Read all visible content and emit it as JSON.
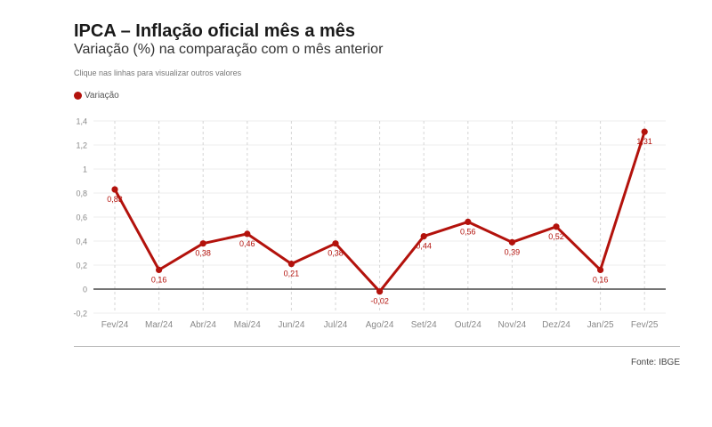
{
  "header": {
    "title": "IPCA – Inflação oficial mês a mês",
    "subtitle": "Variação (%) na comparação com o mês anterior",
    "hint": "Clique nas linhas para visualizar outros valores"
  },
  "legend": {
    "label": "Variação",
    "icon": "circle-marker-icon"
  },
  "footer": {
    "source": "Fonte: IBGE"
  },
  "colors": {
    "series": "#b3120c",
    "zero_line": "#222222",
    "grid": "#d6d6d6",
    "tick_text": "#888888"
  },
  "chart_data": {
    "type": "line",
    "title": "IPCA – Inflação oficial mês a mês",
    "subtitle": "Variação (%) na comparação com o mês anterior",
    "xlabel": "",
    "ylabel": "",
    "categories": [
      "Fev/24",
      "Mar/24",
      "Abr/24",
      "Mai/24",
      "Jun/24",
      "Jul/24",
      "Ago/24",
      "Set/24",
      "Out/24",
      "Nov/24",
      "Dez/24",
      "Jan/25",
      "Fev/25"
    ],
    "series": [
      {
        "name": "Variação",
        "values": [
          0.83,
          0.16,
          0.38,
          0.46,
          0.21,
          0.38,
          -0.02,
          0.44,
          0.56,
          0.39,
          0.52,
          0.16,
          1.31
        ]
      }
    ],
    "data_labels": [
      "0,83",
      "0,16",
      "0,38",
      "0,46",
      "0,21",
      "0,38",
      "-0,02",
      "0,44",
      "0,56",
      "0,39",
      "0,52",
      "0,16",
      "1,31"
    ],
    "yticks": [
      -0.2,
      0,
      0.2,
      0.4,
      0.6,
      0.8,
      1,
      1.2,
      1.4
    ],
    "ytick_labels": [
      "-0,2",
      "0",
      "0,2",
      "0,4",
      "0,6",
      "0,8",
      "1",
      "1,2",
      "1,4"
    ],
    "ylim": [
      -0.2,
      1.4
    ],
    "grid": true,
    "legend_position": "top-left"
  }
}
